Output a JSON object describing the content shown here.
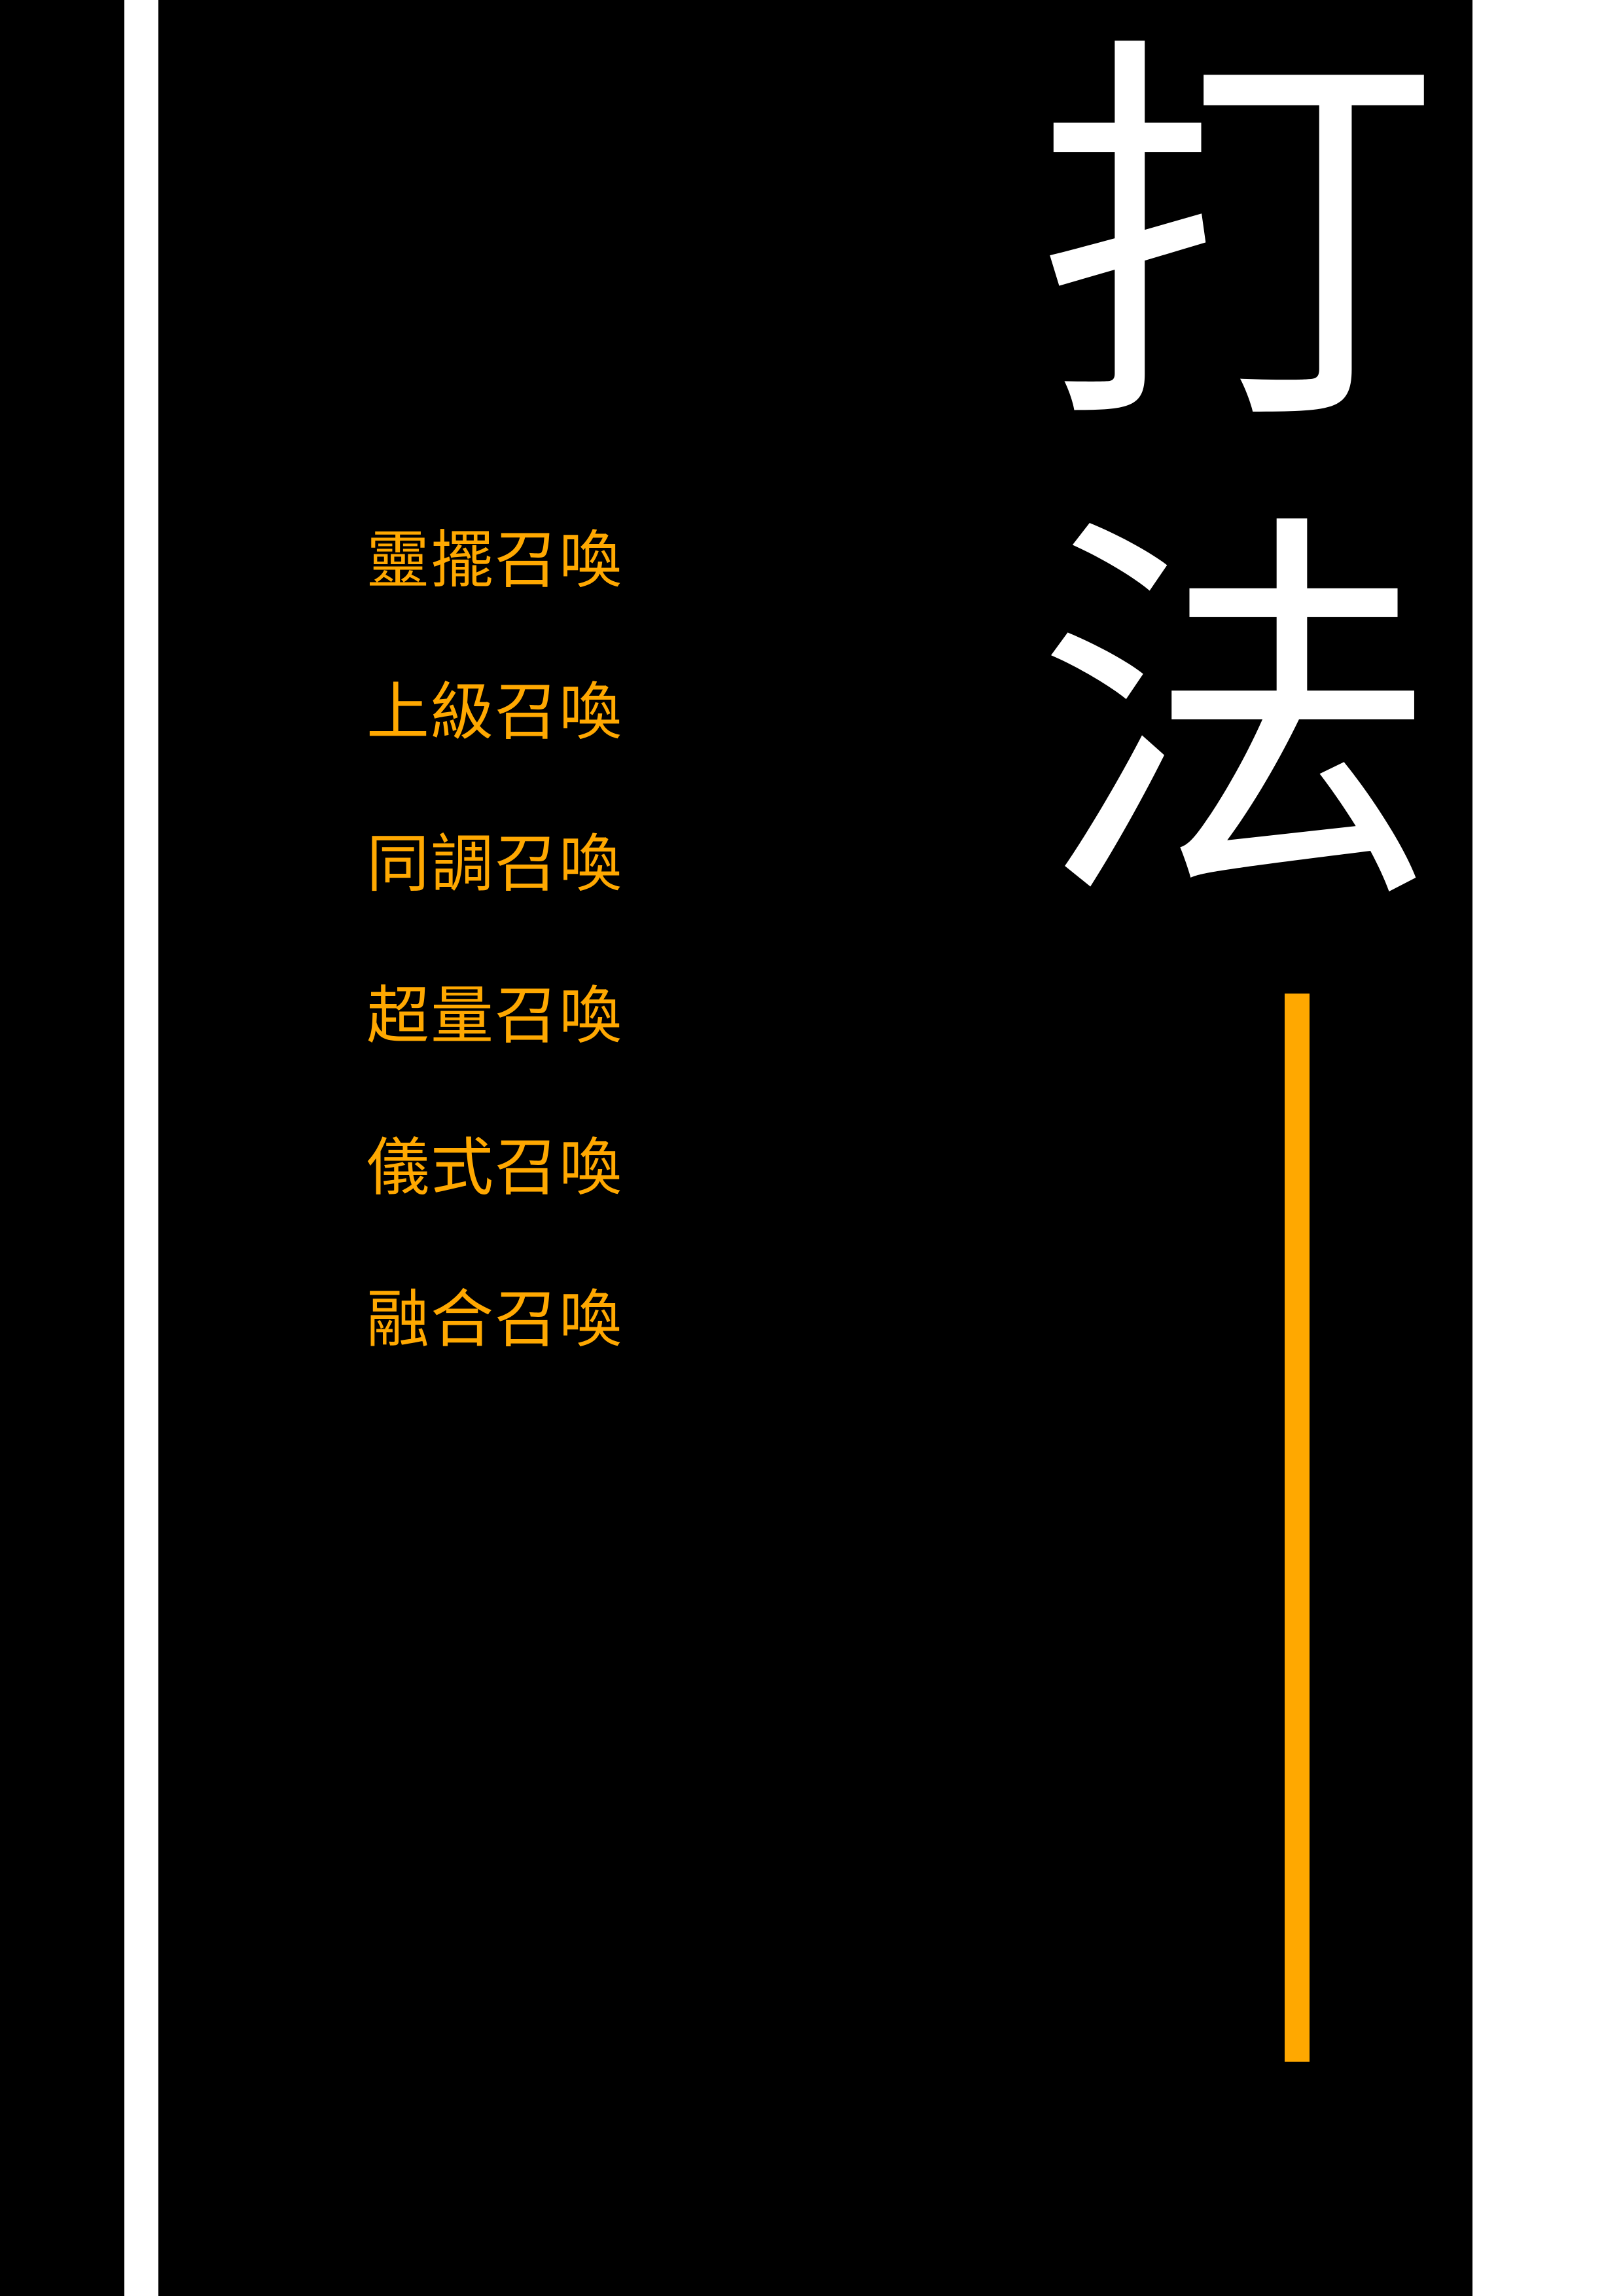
{
  "title": [
    "打",
    "法"
  ],
  "summon_methods": [
    "靈擺召喚",
    "上級召喚",
    "同調召喚",
    "超量召喚",
    "儀式召喚",
    "融合召喚"
  ],
  "colors": {
    "background": "#000000",
    "title_text": "#ffffff",
    "accent": "#FFA800",
    "stripe": "#ffffff"
  }
}
